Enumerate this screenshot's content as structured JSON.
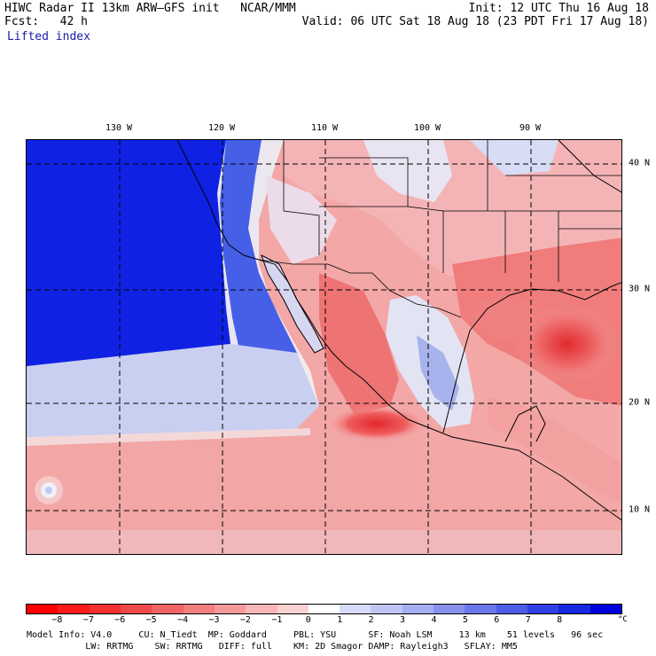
{
  "header": {
    "line1_left": "HIWC Radar II 13km ARW–GFS init   NCAR/MMM",
    "line2_left": "Fcst:   42 h",
    "field_name": "Lifted index",
    "init": "Init: 12 UTC Thu 16 Aug 18",
    "valid": "Valid: 06 UTC Sat 18 Aug 18 (23 PDT Fri 17 Aug 18)"
  },
  "map": {
    "longitude_labels": [
      "130 W",
      "120 W",
      "110 W",
      "100 W",
      "90 W"
    ],
    "latitude_labels": [
      "40 N",
      "30 N",
      "20 N",
      "10 N"
    ],
    "graticule": "dashed",
    "colors": {
      "deep_stable": "#0a1ee6",
      "stable": "#3a58e8",
      "neutral": "#f2f2f6",
      "unstable": "#f08a8a",
      "very_unstable": "#e0242a",
      "coast": "#000000"
    }
  },
  "colorbar": {
    "unit": "°C",
    "ticks": [
      "−8",
      "−7",
      "−6",
      "−5",
      "−4",
      "−3",
      "−2",
      "−1",
      "0",
      "1",
      "2",
      "3",
      "4",
      "5",
      "6",
      "7",
      "8"
    ],
    "swatches": [
      "#ff0000",
      "#ff1a1a",
      "#f43030",
      "#ee4a4a",
      "#ef6464",
      "#f27e7e",
      "#f59a9a",
      "#f8b6b6",
      "#fbd2d2",
      "#ffffff",
      "#d8dcf8",
      "#c0c6f4",
      "#a4aef0",
      "#8892ec",
      "#6c78ea",
      "#4e5ce8",
      "#3040e4",
      "#1628e0",
      "#0000dc"
    ]
  },
  "model_info": {
    "line1": "Model Info: V4.0     CU: N_Tiedt  MP: Goddard     PBL: YSU      SF: Noah LSM     13 km    51 levels   96 sec",
    "line2": "           LW: RRTMG    SW: RRTMG   DIFF: full    KM: 2D Smagor DAMP: Rayleigh3   SFLAY: MM5"
  }
}
